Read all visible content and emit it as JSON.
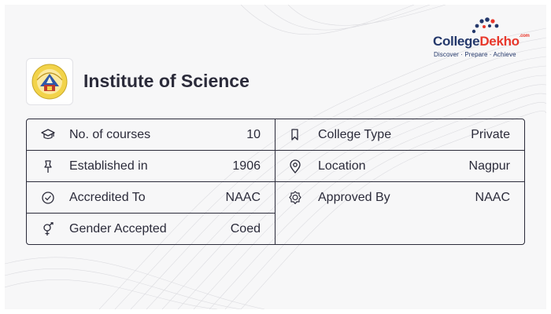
{
  "brand": {
    "name_part1": "College",
    "name_part2": "Dekho",
    "name_suffix": ".com",
    "tagline": "Discover · Prepare · Achieve"
  },
  "institute": {
    "logo_icon": "institute-crest-icon",
    "title": "Institute of Science"
  },
  "details": {
    "left": [
      {
        "icon": "graduation-cap-icon",
        "label": "No. of courses",
        "value": "10"
      },
      {
        "icon": "pin-icon",
        "label": "Established in",
        "value": "1906"
      },
      {
        "icon": "check-circle-icon",
        "label": "Accredited To",
        "value": "NAAC"
      },
      {
        "icon": "gender-icon",
        "label": "Gender Accepted",
        "value": "Coed"
      }
    ],
    "right": [
      {
        "icon": "bookmark-icon",
        "label": "College Type",
        "value": "Private"
      },
      {
        "icon": "location-pin-icon",
        "label": "Location",
        "value": "Nagpur"
      },
      {
        "icon": "badge-check-icon",
        "label": "Approved By",
        "value": "NAAC"
      }
    ]
  },
  "colors": {
    "text": "#2b2b3a",
    "brand_blue": "#24386b",
    "brand_red": "#e8372b",
    "background": "#f7f7f8"
  }
}
